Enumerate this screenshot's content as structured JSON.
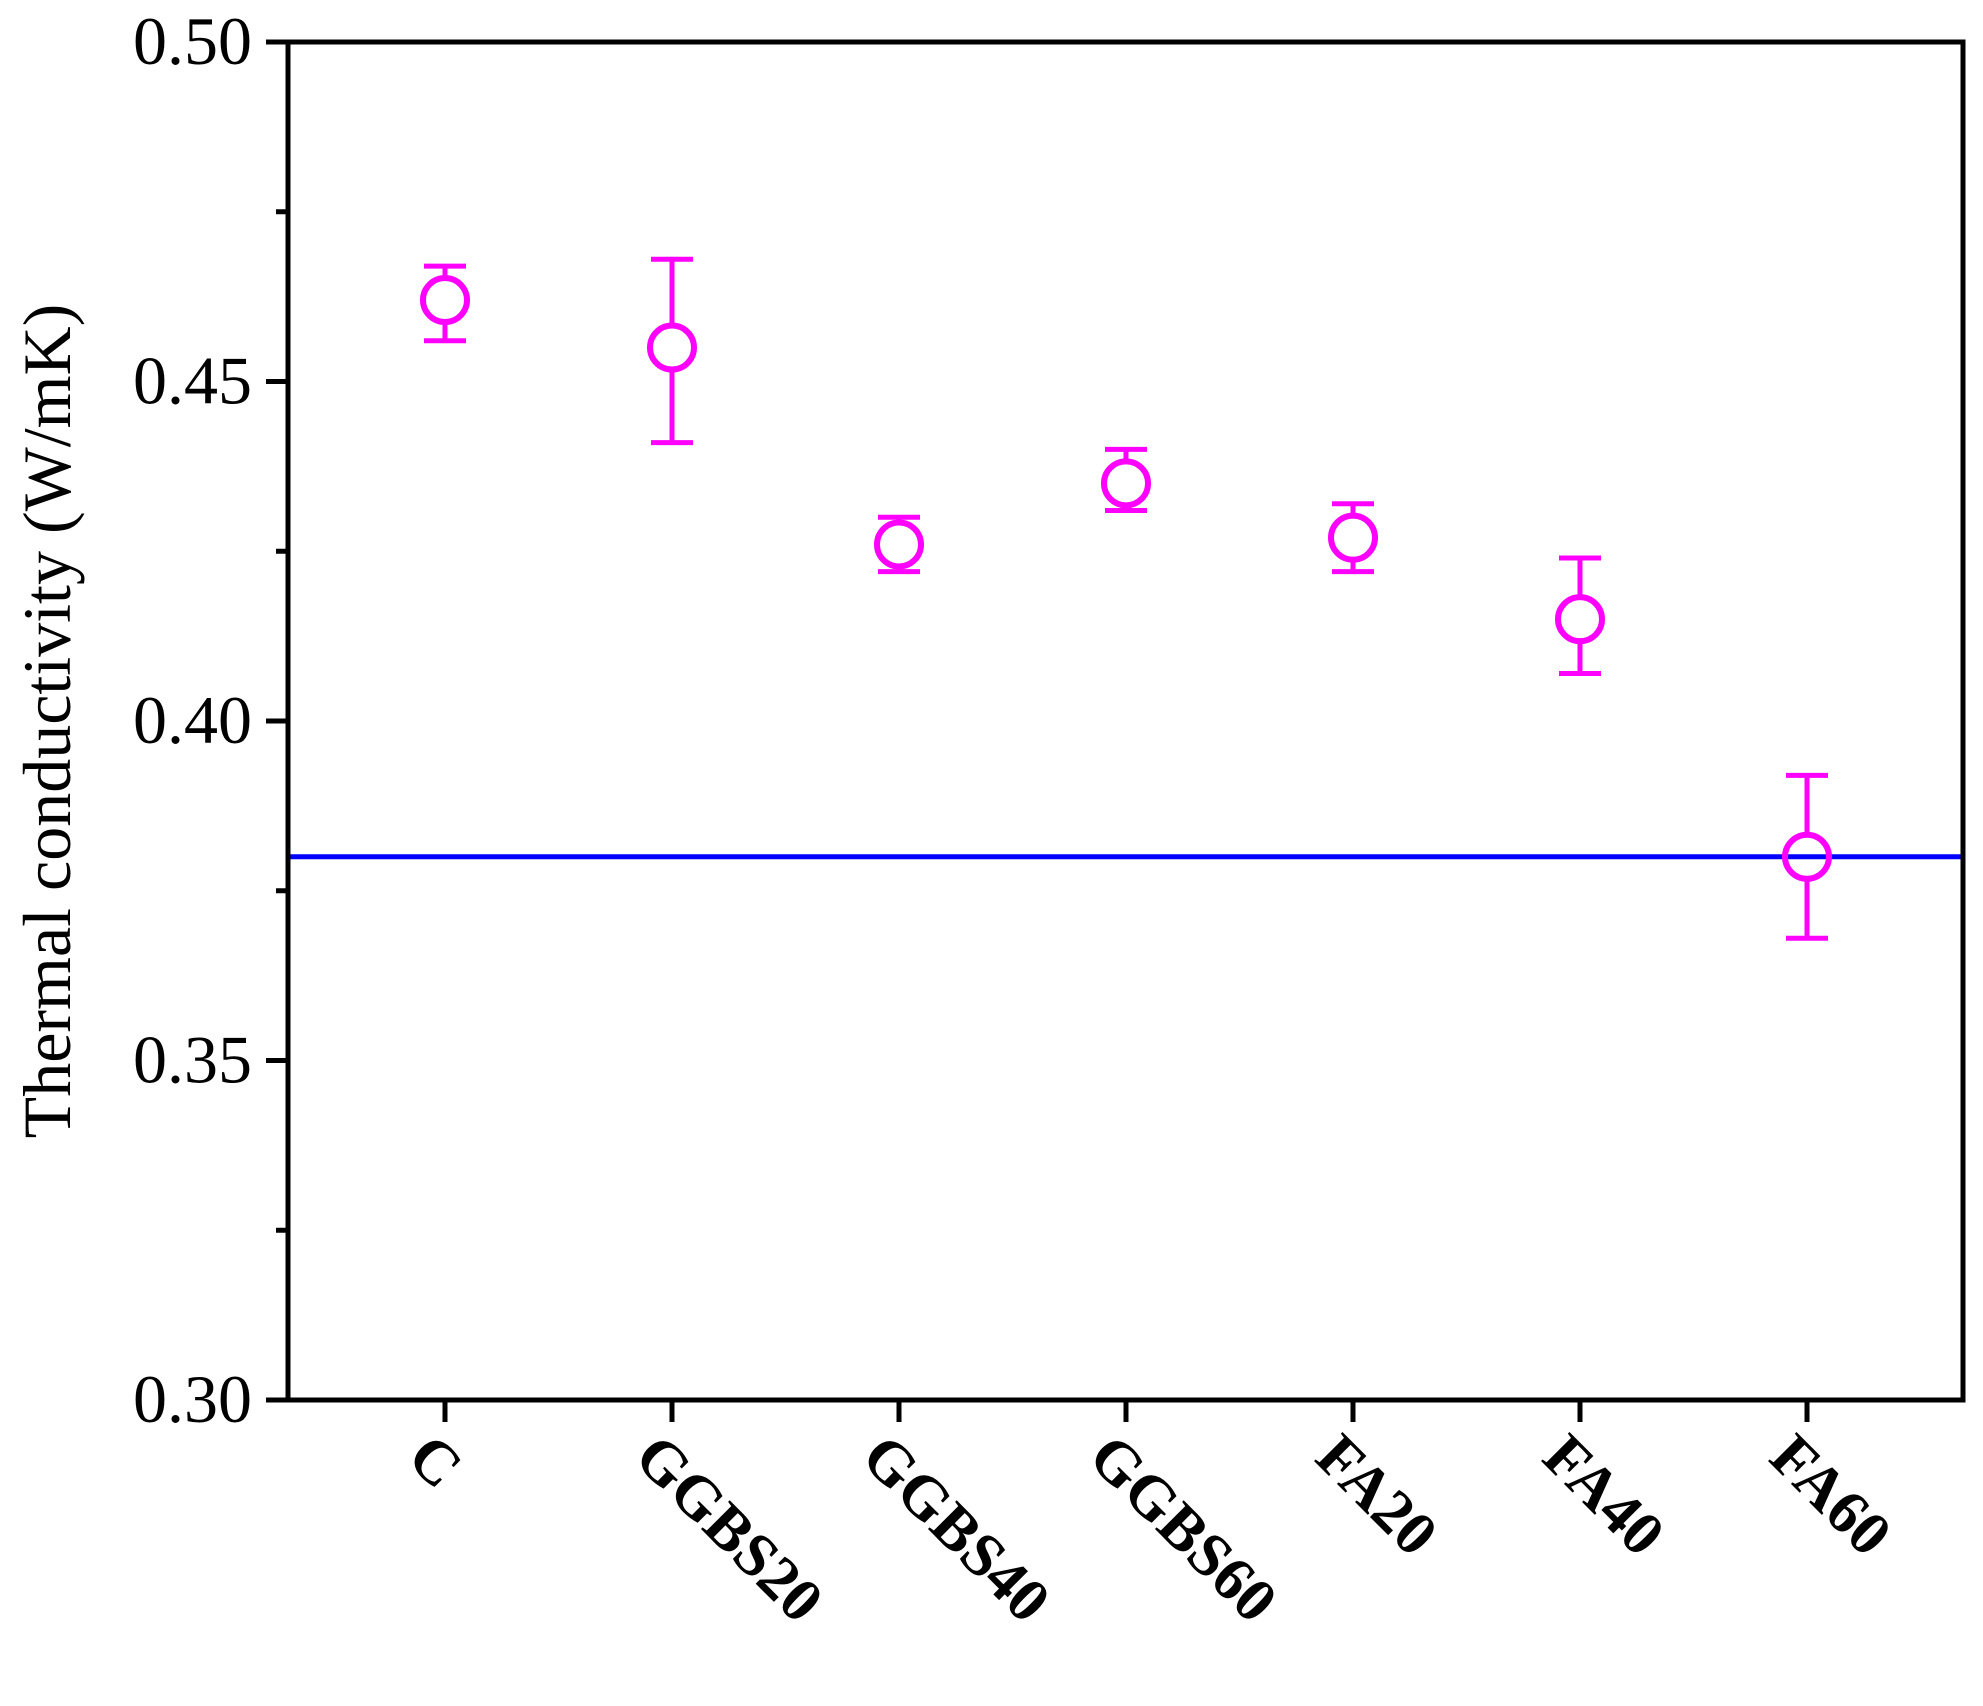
{
  "chart_data": {
    "type": "scatter",
    "title": "",
    "xlabel": "",
    "ylabel": "Thermal conductivity (W/mK)",
    "ylim": [
      0.3,
      0.5
    ],
    "yticks": [
      "0.30",
      "0.35",
      "0.40",
      "0.45",
      "0.50"
    ],
    "categories": [
      "C",
      "GGBS20",
      "GGBS40",
      "GGBS60",
      "FA20",
      "FA40",
      "FA60"
    ],
    "series": [
      {
        "values": [
          0.462,
          0.455,
          0.426,
          0.435,
          0.427,
          0.415,
          0.38
        ],
        "error_low": [
          0.456,
          0.441,
          0.422,
          0.431,
          0.422,
          0.407,
          0.368
        ],
        "error_high": [
          0.467,
          0.468,
          0.43,
          0.44,
          0.432,
          0.424,
          0.392
        ],
        "marker": "open-circle",
        "color": "#ff00ff"
      }
    ],
    "reference_line": {
      "y": 0.38,
      "color": "#0000ff"
    },
    "grid": false,
    "legend": "none"
  }
}
